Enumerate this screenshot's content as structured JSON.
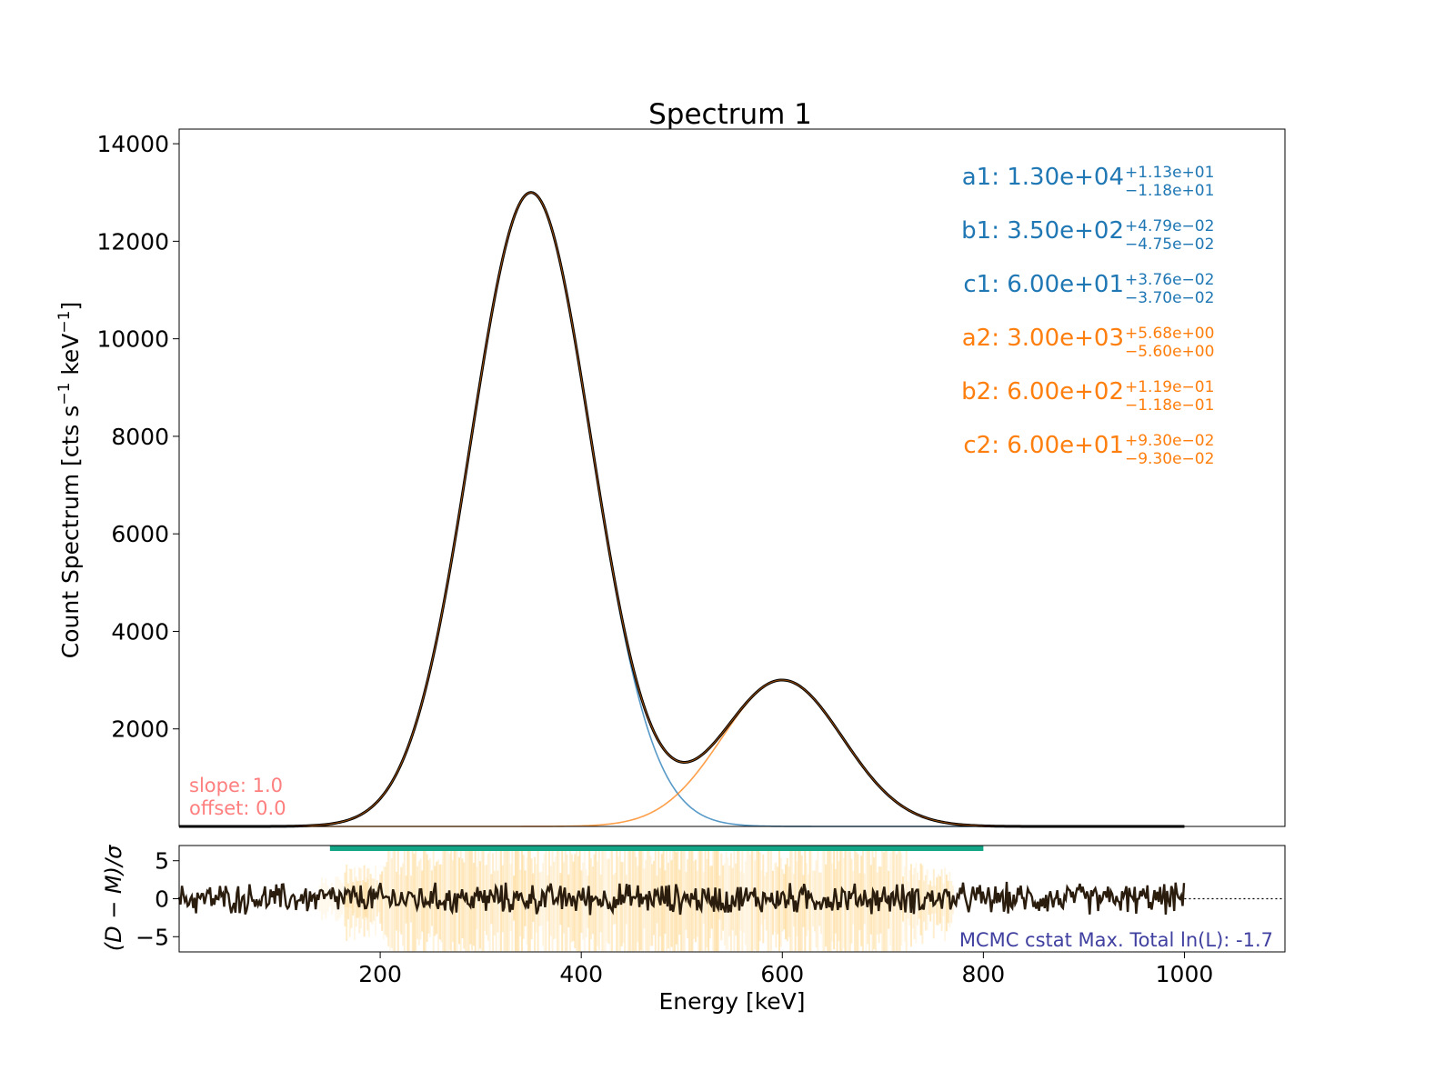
{
  "chart_data": [
    {
      "type": "line",
      "title": "Spectrum 1",
      "xlabel": "",
      "ylabel": "Count Spectrum [cts s",
      "ylabel_sup1": "−1",
      "ylabel_mid": " keV",
      "ylabel_sup2": "−1",
      "ylabel_end": "]",
      "xlim": [
        0,
        1100
      ],
      "ylim": [
        0,
        14300
      ],
      "yticks": [
        2000,
        4000,
        6000,
        8000,
        10000,
        12000,
        14000
      ],
      "ytick_labels": [
        "2000",
        "4000",
        "6000",
        "8000",
        "10000",
        "12000",
        "14000"
      ],
      "grid": false,
      "model_x_range": [
        0,
        1000
      ],
      "components": [
        {
          "amplitude": 13000,
          "center": 350,
          "width": 60,
          "color": "#1f77b4"
        },
        {
          "amplitude": 3000,
          "center": 600,
          "width": 60,
          "color": "#ff7f0e"
        }
      ],
      "total_color": "#000000",
      "total_overlay_color": "#ff7f0e",
      "params": [
        {
          "label": "a1: 1.30e+04",
          "upper": "+1.13e+01",
          "lower": "−1.18e+01",
          "color": "#1f77b4"
        },
        {
          "label": "b1: 3.50e+02",
          "upper": "+4.79e−02",
          "lower": "−4.75e−02",
          "color": "#1f77b4"
        },
        {
          "label": "c1: 6.00e+01",
          "upper": "+3.76e−02",
          "lower": "−3.70e−02",
          "color": "#1f77b4"
        },
        {
          "label": "a2: 3.00e+03",
          "upper": "+5.68e+00",
          "lower": "−5.60e+00",
          "color": "#ff7f0e"
        },
        {
          "label": "b2: 6.00e+02",
          "upper": "+1.19e−01",
          "lower": "−1.18e−01",
          "color": "#ff7f0e"
        },
        {
          "label": "c2: 6.00e+01",
          "upper": "+9.30e−02",
          "lower": "−9.30e−02",
          "color": "#ff7f0e"
        }
      ],
      "annotations": {
        "slope": "slope: 1.0",
        "offset": "offset: 0.0",
        "color": "#ff7f7f"
      }
    },
    {
      "type": "line",
      "title": "",
      "xlabel": "Energy [keV]",
      "ylabel": "(D − M)/σ",
      "xlim": [
        0,
        1100
      ],
      "ylim": [
        -7,
        7
      ],
      "xticks": [
        200,
        400,
        600,
        800,
        1000
      ],
      "xtick_labels": [
        "200",
        "400",
        "600",
        "800",
        "1000"
      ],
      "yticks": [
        -5,
        0,
        5
      ],
      "ytick_labels": [
        "−5",
        "0",
        "5"
      ],
      "residual_x_range": [
        0,
        1000
      ],
      "residual_amplitude": 2,
      "residual_color": "#2b1d0e",
      "band_color": "#ffa500",
      "band_x_range": [
        150,
        800
      ],
      "fit_range_bar": [
        150,
        800
      ],
      "fit_range_color": "#13a585",
      "zero_line": "dotted",
      "annotation": "MCMC cstat Max. Total ln(L): -1.7",
      "annotation_color": "#4040a0"
    }
  ]
}
